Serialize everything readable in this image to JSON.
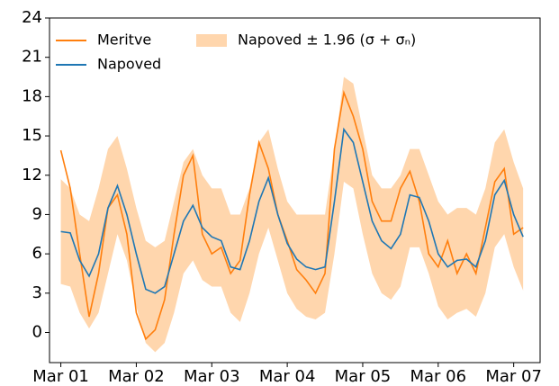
{
  "chart_data": {
    "type": "line",
    "x": [
      0,
      0.125,
      0.25,
      0.375,
      0.5,
      0.625,
      0.75,
      0.875,
      1,
      1.125,
      1.25,
      1.375,
      1.5,
      1.625,
      1.75,
      1.875,
      2,
      2.125,
      2.25,
      2.375,
      2.5,
      2.625,
      2.75,
      2.875,
      3,
      3.125,
      3.25,
      3.375,
      3.5,
      3.625,
      3.75,
      3.875,
      4,
      4.125,
      4.25,
      4.375,
      4.5,
      4.625,
      4.75,
      4.875,
      5,
      5.125,
      5.25,
      5.375,
      5.5,
      5.625,
      5.75,
      5.875,
      6,
      6.125
    ],
    "series": [
      {
        "name": "Meritve",
        "color": "#ff7f0e",
        "values": [
          13.9,
          11,
          6,
          1.2,
          4.5,
          9.5,
          10.5,
          7.5,
          1.5,
          -0.5,
          0.2,
          2.5,
          7.5,
          12.0,
          13.5,
          7.5,
          6.0,
          6.5,
          4.5,
          5.5,
          10.5,
          14.5,
          12.5,
          9.0,
          7.0,
          4.8,
          4.0,
          3.0,
          4.5,
          14.0,
          18.3,
          16.5,
          14.0,
          10.0,
          8.5,
          8.5,
          11.0,
          12.3,
          10.0,
          6.0,
          5.0,
          7.0,
          4.5,
          6.0,
          4.5,
          8.0,
          11.5,
          12.5,
          7.5,
          8.0
        ]
      },
      {
        "name": "Napoved",
        "color": "#1f77b4",
        "values": [
          7.7,
          7.6,
          5.5,
          4.3,
          6.0,
          9.5,
          11.2,
          9.0,
          6.0,
          3.3,
          3.0,
          3.5,
          6.0,
          8.5,
          9.7,
          8.0,
          7.3,
          7.0,
          5.0,
          4.8,
          7.0,
          10.0,
          11.8,
          9.0,
          6.8,
          5.6,
          5.0,
          4.8,
          5.0,
          10.0,
          15.5,
          14.5,
          11.5,
          8.5,
          7.0,
          6.4,
          7.5,
          10.5,
          10.3,
          8.5,
          6.0,
          5.0,
          5.5,
          5.6,
          5.0,
          7.0,
          10.5,
          11.6,
          9.0,
          7.3
        ]
      }
    ],
    "band": {
      "name": "Napoved ± 1.96 (σ + σₙ)",
      "color": "#ffcc99",
      "lower": [
        3.7,
        3.5,
        1.5,
        0.3,
        1.5,
        4.5,
        7.5,
        5.5,
        2.0,
        -0.8,
        -1.5,
        -0.8,
        1.5,
        4.5,
        5.5,
        4.0,
        3.5,
        3.5,
        1.5,
        0.8,
        3.0,
        6.0,
        8.0,
        5.5,
        3.0,
        1.8,
        1.2,
        1.0,
        1.5,
        6.0,
        11.5,
        11.0,
        7.5,
        4.5,
        3.0,
        2.5,
        3.5,
        6.5,
        6.5,
        4.5,
        2.0,
        1.0,
        1.5,
        1.8,
        1.2,
        3.0,
        6.5,
        7.5,
        5.0,
        3.2
      ],
      "upper": [
        11.7,
        11.0,
        9.0,
        8.5,
        11.0,
        14.0,
        15.0,
        12.5,
        9.5,
        7.0,
        6.5,
        7.0,
        10.0,
        13.0,
        14.0,
        12.0,
        11.0,
        11.0,
        9.0,
        9.0,
        11.0,
        14.5,
        15.5,
        12.5,
        10.0,
        9.0,
        9.0,
        9.0,
        9.0,
        14.0,
        19.5,
        19.0,
        15.5,
        12.0,
        11.0,
        11.0,
        12.0,
        14.0,
        14.0,
        12.0,
        10.0,
        9.0,
        9.5,
        9.5,
        9.0,
        11.0,
        14.5,
        15.5,
        13.0,
        11.0
      ]
    },
    "xlim": [
      -0.15,
      6.35
    ],
    "xticks": [
      {
        "value": 0,
        "label": "Mar 01"
      },
      {
        "value": 1,
        "label": "Mar 02"
      },
      {
        "value": 2,
        "label": "Mar 03"
      },
      {
        "value": 3,
        "label": "Mar 04"
      },
      {
        "value": 4,
        "label": "Mar 05"
      },
      {
        "value": 5,
        "label": "Mar 06"
      },
      {
        "value": 6,
        "label": "Mar 07"
      }
    ],
    "ylim": [
      -2.3,
      24
    ],
    "yticks": [
      0,
      3,
      6,
      9,
      12,
      15,
      18,
      21,
      24
    ],
    "legend": "upper left"
  }
}
